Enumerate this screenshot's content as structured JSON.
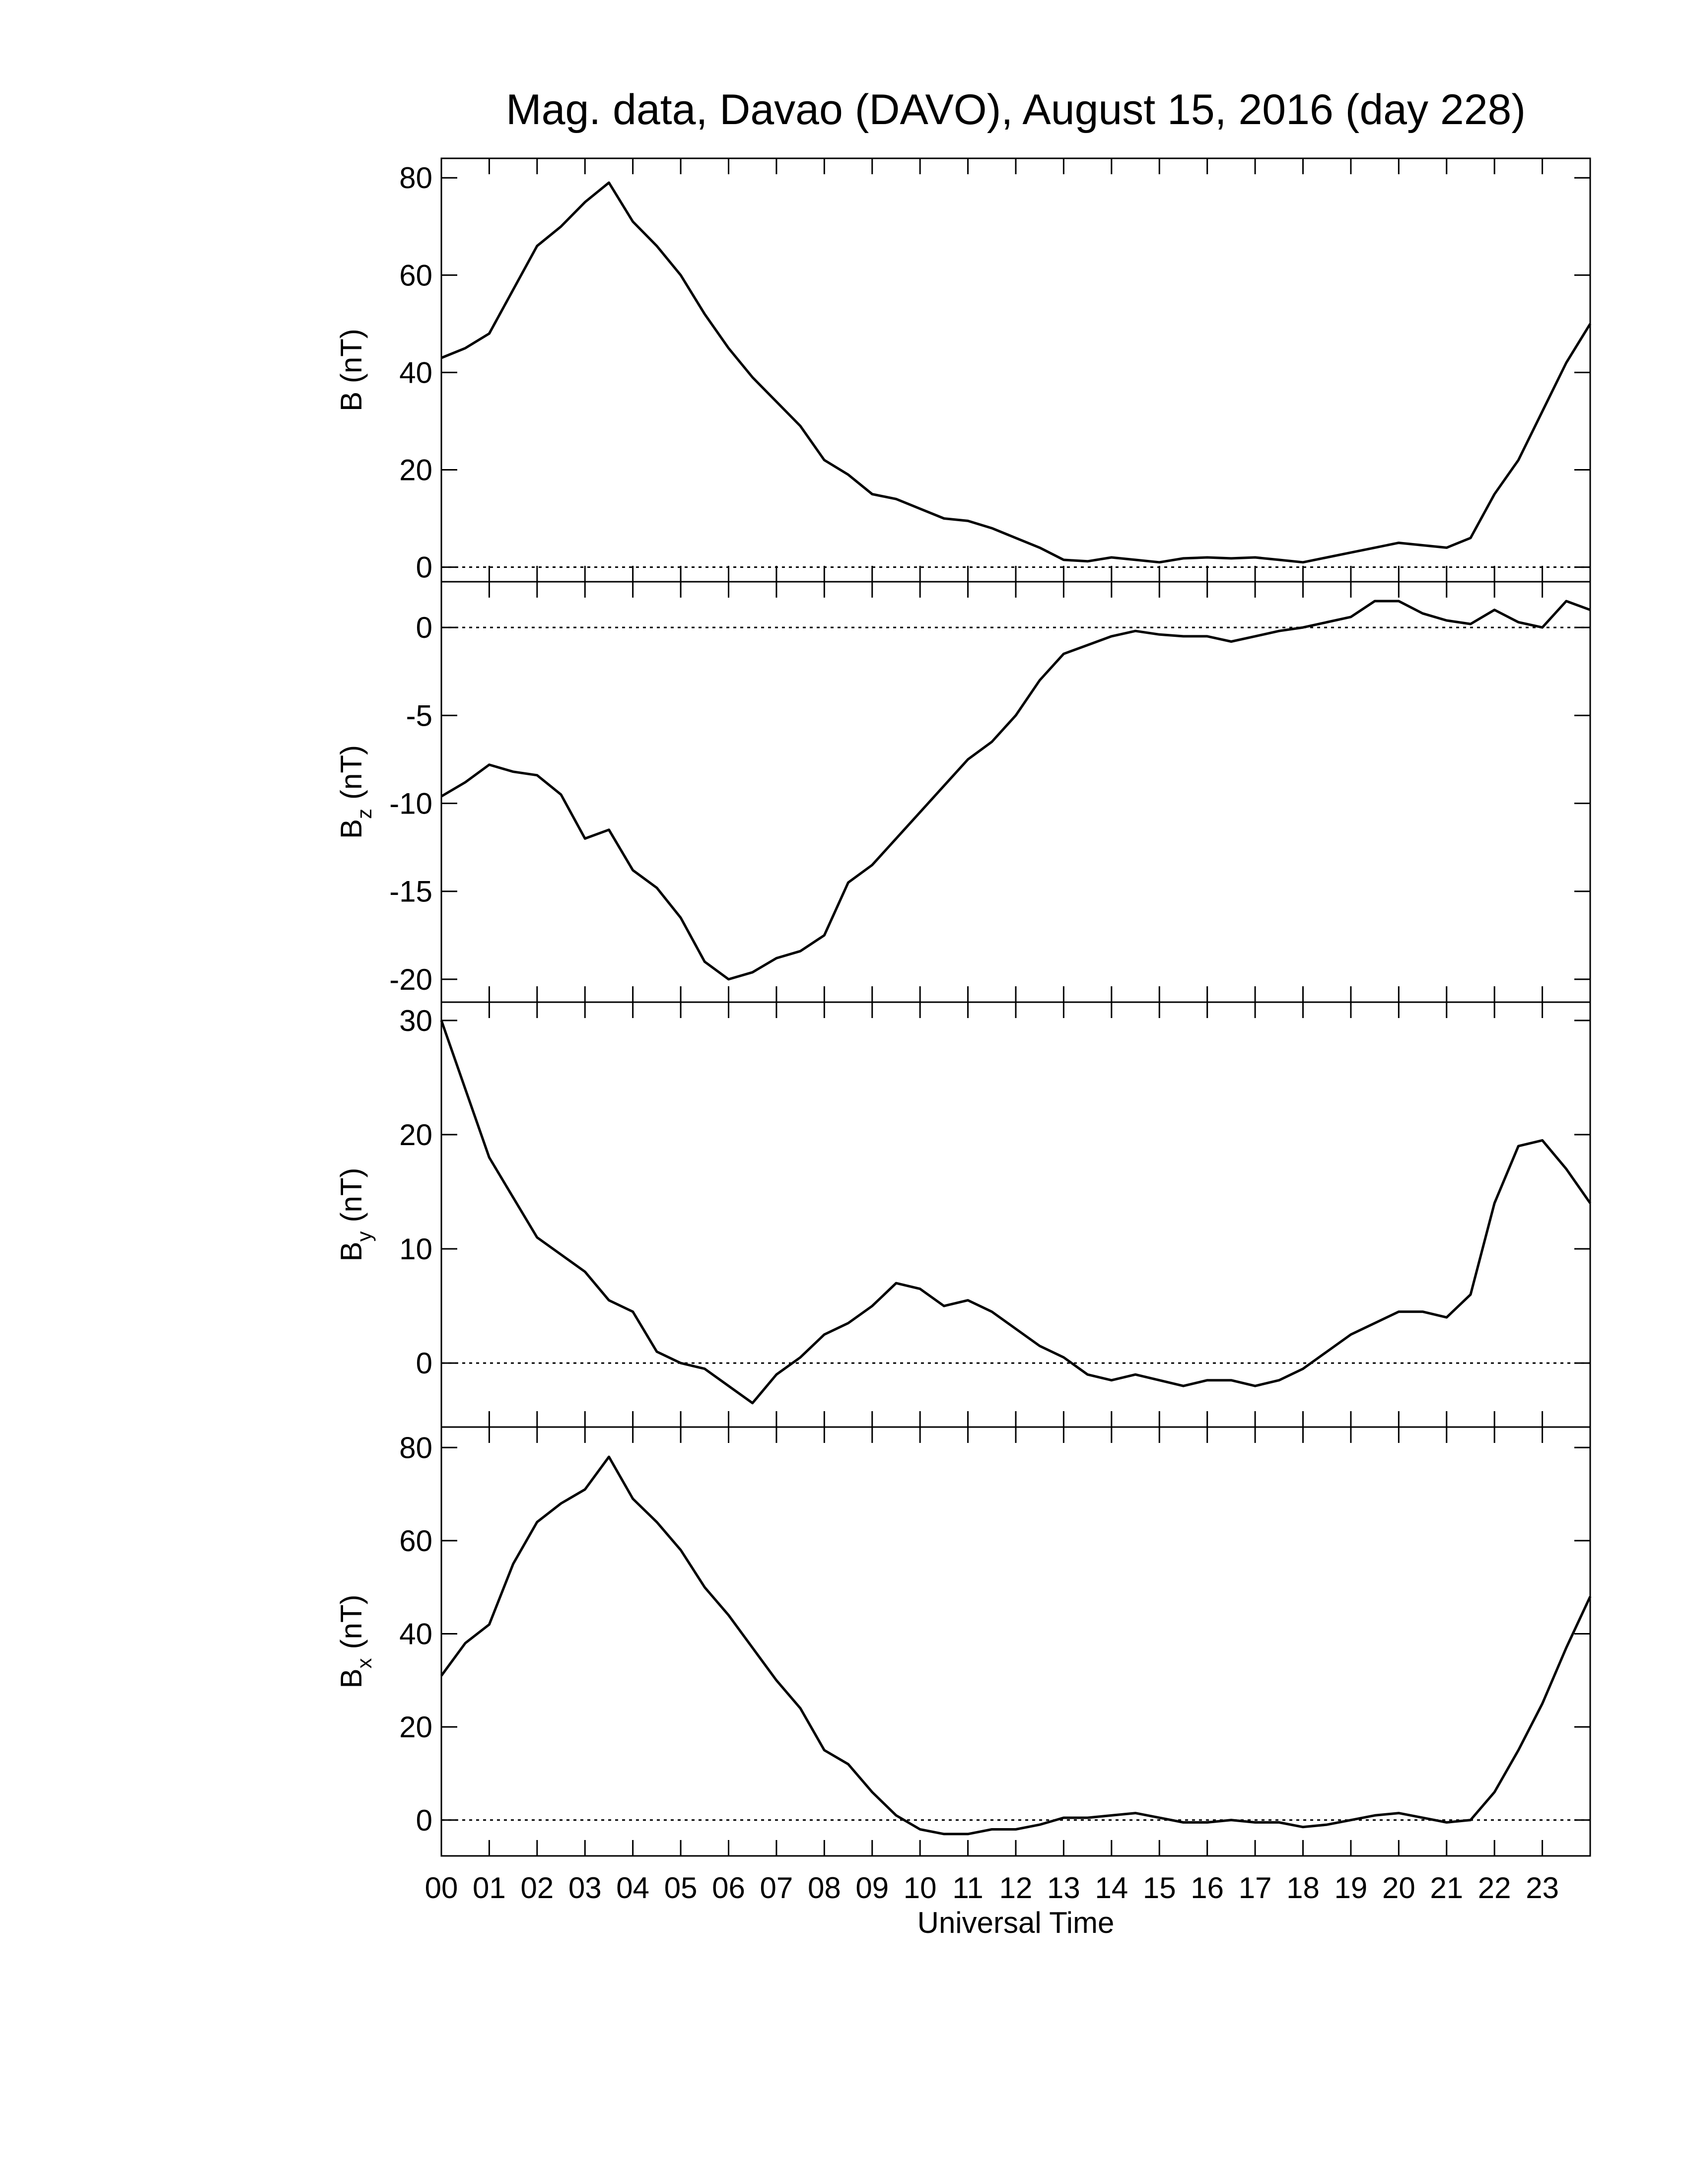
{
  "chart_data": [
    {
      "type": "line",
      "title": "Mag. data, Davao (DAVO), August 15, 2016 (day 228)",
      "ylabel": "B (nT)",
      "x": [
        0,
        0.5,
        1,
        1.5,
        2,
        2.5,
        3,
        3.5,
        4,
        4.5,
        5,
        5.5,
        6,
        6.5,
        7,
        7.5,
        8,
        8.5,
        9,
        9.5,
        10,
        10.5,
        11,
        11.5,
        12,
        12.5,
        13,
        13.5,
        14,
        14.5,
        15,
        15.5,
        16,
        16.5,
        17,
        17.5,
        18,
        18.5,
        19,
        19.5,
        20,
        20.5,
        21,
        21.5,
        22,
        22.5,
        23,
        23.5,
        24
      ],
      "values": [
        43,
        45,
        48,
        57,
        66,
        70,
        75,
        79,
        71,
        66,
        60,
        52,
        45,
        39,
        34,
        29,
        22,
        19,
        15,
        14,
        12,
        10,
        9.5,
        8,
        6,
        4,
        1.5,
        1.2,
        2,
        1.5,
        1,
        1.8,
        2,
        1.8,
        2,
        1.5,
        1,
        2,
        3,
        4,
        5,
        4.5,
        4,
        6,
        15,
        22,
        32,
        42,
        50
      ],
      "color": "#000000",
      "ylim": [
        -3,
        84
      ],
      "yticks": [
        0,
        20,
        40,
        60,
        80
      ],
      "zero_line": true
    },
    {
      "type": "line",
      "ylabel": "B",
      "ylabel_sub": "z",
      "ylabel_unit": "(nT)",
      "x": [
        0,
        0.5,
        1,
        1.5,
        2,
        2.5,
        3,
        3.5,
        4,
        4.5,
        5,
        5.5,
        6,
        6.5,
        7,
        7.5,
        8,
        8.5,
        9,
        9.5,
        10,
        10.5,
        11,
        11.5,
        12,
        12.5,
        13,
        13.5,
        14,
        14.5,
        15,
        15.5,
        16,
        16.5,
        17,
        17.5,
        18,
        18.5,
        19,
        19.5,
        20,
        20.5,
        21,
        21.5,
        22,
        22.5,
        23,
        23.5,
        24
      ],
      "values": [
        -9.6,
        -8.8,
        -7.8,
        -8.2,
        -8.4,
        -9.5,
        -12,
        -11.5,
        -13.8,
        -14.8,
        -16.5,
        -19,
        -20,
        -19.6,
        -18.8,
        -18.4,
        -17.5,
        -14.5,
        -13.5,
        -12,
        -10.5,
        -9,
        -7.5,
        -6.5,
        -5,
        -3,
        -1.5,
        -1,
        -0.5,
        -0.2,
        -0.4,
        -0.5,
        -0.5,
        -0.8,
        -0.5,
        -0.2,
        0,
        0.3,
        0.6,
        1.5,
        1.5,
        0.8,
        0.4,
        0.2,
        1,
        0.3,
        0,
        1.5,
        1
      ],
      "color": "#000000",
      "ylim": [
        -21.3,
        2.6
      ],
      "yticks": [
        -20,
        -15,
        -10,
        -5,
        0
      ],
      "zero_line": true
    },
    {
      "type": "line",
      "ylabel": "B",
      "ylabel_sub": "y",
      "ylabel_unit": "(nT)",
      "x": [
        0,
        0.5,
        1,
        1.5,
        2,
        2.5,
        3,
        3.5,
        4,
        4.5,
        5,
        5.5,
        6,
        6.5,
        7,
        7.5,
        8,
        8.5,
        9,
        9.5,
        10,
        10.5,
        11,
        11.5,
        12,
        12.5,
        13,
        13.5,
        14,
        14.5,
        15,
        15.5,
        16,
        16.5,
        17,
        17.5,
        18,
        18.5,
        19,
        19.5,
        20,
        20.5,
        21,
        21.5,
        22,
        22.5,
        23,
        23.5,
        24
      ],
      "values": [
        30,
        24,
        18,
        14.5,
        11,
        9.5,
        8,
        5.5,
        4.5,
        1,
        0,
        -0.5,
        -2,
        -3.5,
        -1,
        0.5,
        2.5,
        3.5,
        5,
        7,
        6.5,
        5,
        5.5,
        4.5,
        3,
        1.5,
        0.5,
        -1,
        -1.5,
        -1,
        -1.5,
        -2,
        -1.5,
        -1.5,
        -2,
        -1.5,
        -0.5,
        1,
        2.5,
        3.5,
        4.5,
        4.5,
        4,
        6,
        14,
        19,
        19.5,
        17,
        14
      ],
      "color": "#000000",
      "ylim": [
        -5.6,
        31.6
      ],
      "yticks": [
        0,
        10,
        20,
        30
      ],
      "zero_line": true
    },
    {
      "type": "line",
      "ylabel": "B",
      "ylabel_sub": "x",
      "ylabel_unit": "(nT)",
      "xlabel": "Universal Time",
      "x": [
        0,
        0.5,
        1,
        1.5,
        2,
        2.5,
        3,
        3.5,
        4,
        4.5,
        5,
        5.5,
        6,
        6.5,
        7,
        7.5,
        8,
        8.5,
        9,
        9.5,
        10,
        10.5,
        11,
        11.5,
        12,
        12.5,
        13,
        13.5,
        14,
        14.5,
        15,
        15.5,
        16,
        16.5,
        17,
        17.5,
        18,
        18.5,
        19,
        19.5,
        20,
        20.5,
        21,
        21.5,
        22,
        22.5,
        23,
        23.5,
        24
      ],
      "values": [
        31,
        38,
        42,
        55,
        64,
        68,
        71,
        78,
        69,
        64,
        58,
        50,
        44,
        37,
        30,
        24,
        15,
        12,
        6,
        1,
        -2,
        -3,
        -3,
        -2,
        -2,
        -1,
        0.5,
        0.5,
        1,
        1.5,
        0.5,
        -0.5,
        -0.5,
        0,
        -0.5,
        -0.5,
        -1.5,
        -1,
        0,
        1,
        1.5,
        0.5,
        -0.5,
        0,
        6,
        15,
        25,
        37,
        48
      ],
      "color": "#000000",
      "ylim": [
        -7.7,
        84.4
      ],
      "yticks": [
        0,
        20,
        40,
        60,
        80
      ],
      "zero_line": true,
      "xlim": [
        0,
        24
      ],
      "xticks": [
        {
          "value": 0,
          "label": "00"
        },
        {
          "value": 1,
          "label": "01"
        },
        {
          "value": 2,
          "label": "02"
        },
        {
          "value": 3,
          "label": "03"
        },
        {
          "value": 4,
          "label": "04"
        },
        {
          "value": 5,
          "label": "05"
        },
        {
          "value": 6,
          "label": "06"
        },
        {
          "value": 7,
          "label": "07"
        },
        {
          "value": 8,
          "label": "08"
        },
        {
          "value": 9,
          "label": "09"
        },
        {
          "value": 10,
          "label": "10"
        },
        {
          "value": 11,
          "label": "11"
        },
        {
          "value": 12,
          "label": "12"
        },
        {
          "value": 13,
          "label": "13"
        },
        {
          "value": 14,
          "label": "14"
        },
        {
          "value": 15,
          "label": "15"
        },
        {
          "value": 16,
          "label": "16"
        },
        {
          "value": 17,
          "label": "17"
        },
        {
          "value": 18,
          "label": "18"
        },
        {
          "value": 19,
          "label": "19"
        },
        {
          "value": 20,
          "label": "20"
        },
        {
          "value": 21,
          "label": "21"
        },
        {
          "value": 22,
          "label": "22"
        },
        {
          "value": 23,
          "label": "23"
        }
      ]
    }
  ]
}
